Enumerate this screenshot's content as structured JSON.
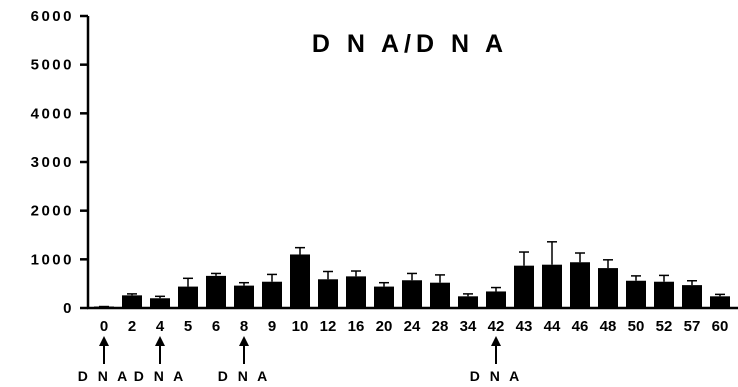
{
  "chart_data": {
    "type": "bar",
    "title": "D N A/D N A",
    "xlabel": "",
    "ylabel": "",
    "ylim": [
      0,
      6000
    ],
    "yticks": [
      "0",
      "1000",
      "2000",
      "3000",
      "4000",
      "5000",
      "6000"
    ],
    "categories": [
      "0",
      "2",
      "4",
      "5",
      "6",
      "8",
      "9",
      "10",
      "12",
      "16",
      "20",
      "24",
      "28",
      "34",
      "42",
      "43",
      "44",
      "46",
      "48",
      "50",
      "52",
      "57",
      "60"
    ],
    "values": [
      20,
      260,
      200,
      440,
      660,
      460,
      540,
      1100,
      590,
      650,
      440,
      570,
      520,
      240,
      340,
      870,
      890,
      940,
      820,
      560,
      540,
      470,
      240
    ],
    "errors": [
      10,
      30,
      40,
      170,
      50,
      60,
      150,
      140,
      160,
      110,
      80,
      140,
      160,
      50,
      80,
      280,
      470,
      190,
      170,
      100,
      130,
      90,
      40
    ],
    "markers": [
      {
        "category": "0",
        "label": "D N A"
      },
      {
        "category": "4",
        "label": "D N A"
      },
      {
        "category": "8",
        "label": "D N A"
      },
      {
        "category": "42",
        "label": "D N A"
      }
    ],
    "grid": false,
    "color": "#000000"
  }
}
